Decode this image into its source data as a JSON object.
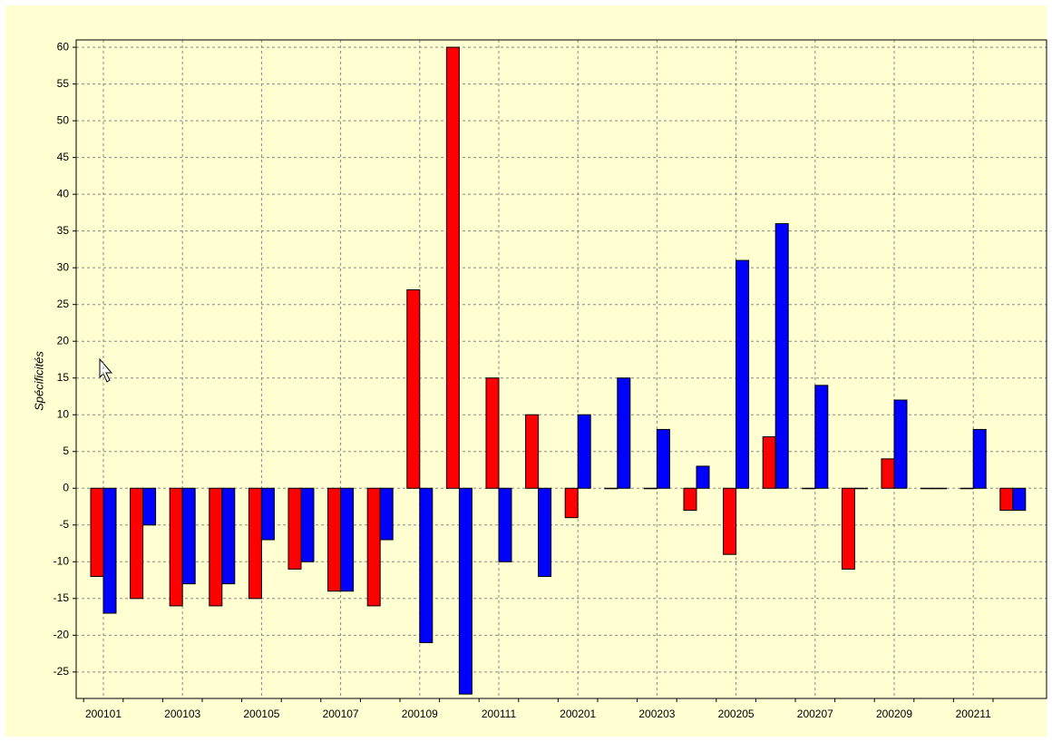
{
  "chart_data": {
    "type": "bar",
    "y_label": "Spécificités",
    "categories": [
      "200101",
      null,
      "200103",
      null,
      "200105",
      null,
      "200107",
      null,
      "200109",
      null,
      "200111",
      null,
      "200201",
      null,
      "200203",
      null,
      "200205",
      null,
      "200207",
      null,
      "200209",
      null,
      "200211",
      null
    ],
    "series": [
      {
        "color": "#ff0000",
        "values": [
          -12,
          -15,
          -16,
          -16,
          -15,
          -11,
          -14,
          -16,
          27,
          60,
          15,
          10,
          -4,
          0,
          0,
          -3,
          -9,
          7,
          0,
          -11,
          4,
          0,
          0,
          -3
        ]
      },
      {
        "color": "#0000ff",
        "values": [
          -17,
          -5,
          -13,
          -13,
          -7,
          -10,
          -14,
          -7,
          -21,
          -28,
          -10,
          -12,
          10,
          15,
          8,
          3,
          31,
          36,
          14,
          0,
          12,
          0,
          8,
          -3
        ]
      }
    ],
    "ylim": [
      -28.6,
      61
    ],
    "yticks": [
      -25,
      -20,
      -15,
      -10,
      -5,
      0,
      5,
      10,
      15,
      20,
      25,
      30,
      35,
      40,
      45,
      50,
      55,
      60
    ],
    "grid": true
  }
}
